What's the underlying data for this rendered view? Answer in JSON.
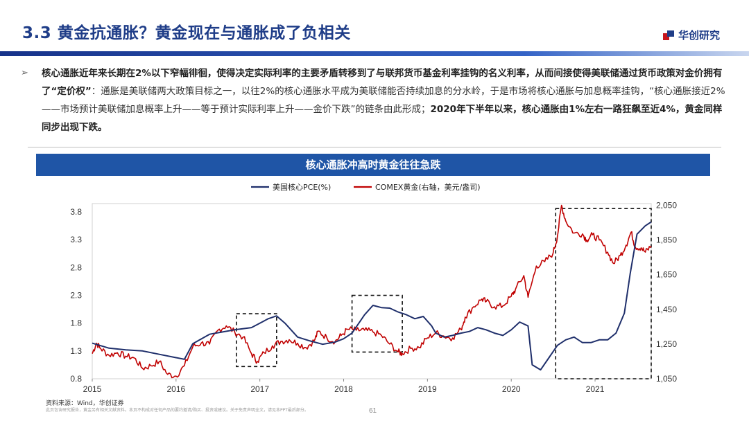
{
  "header": {
    "title": "3.3 黄金抗通胀？黄金现在与通胀成了负相关",
    "logo_text": "华创研究"
  },
  "body": {
    "bullet": "➢",
    "bold_1": "核心通胀近年来长期在2%以下窄幅徘徊，使得决定实际利率的主要矛盾转移到了与联邦货币基金利率挂钩的名义利率，从而间接使得美联储通过货币政策对金价拥有了“定价权”",
    "normal_1": "：通胀是美联储两大政策目标之一，以往2%的核心通胀水平成为美联储能否持续加息的分水岭，于是市场将核心通胀与加息概率挂钩，“核心通胀接近2%——市场预计美联储加息概率上升——等于预计实际利率上升——金价下跌”的链条由此形成；",
    "bold_2": "2020年下半年以来，核心通胀由1%左右一路狂飙至近4%，黄金同样同步出现下跌。"
  },
  "chart_banner": "核心通胀冲高时黄金往往急跌",
  "footer": {
    "source": "资料来源：Wind，华创证券",
    "disclaimer": "此页包含研究报告，黄金另有相关文献资料。本页不构成对任何产品的要约邀请/购买、投资或建议。关于免责声明全文，请见本PPT最后部分。",
    "page": "61"
  },
  "colors": {
    "pce": "#1f2f6b",
    "gold": "#c00000",
    "accent": "#1f55a6"
  },
  "chart_data": {
    "type": "line",
    "x_ticks": [
      "2015",
      "2016",
      "2017",
      "2018",
      "2019",
      "2020",
      "2021"
    ],
    "y_left": {
      "ticks": [
        "0.8",
        "1.3",
        "1.8",
        "2.3",
        "2.8",
        "3.3",
        "3.8"
      ],
      "range": [
        0.8,
        3.95
      ]
    },
    "y_right": {
      "ticks": [
        "1,050",
        "1,250",
        "1,450",
        "1,650",
        "1,850",
        "2,050"
      ],
      "range": [
        1050,
        2060
      ]
    },
    "x_range": [
      2015.0,
      2021.67
    ],
    "grid": false,
    "legend_position": "top",
    "series": [
      {
        "name": "美国核心PCE(%)",
        "axis": "left",
        "points": [
          [
            2015.0,
            1.44
          ],
          [
            2015.2,
            1.35
          ],
          [
            2015.4,
            1.32
          ],
          [
            2015.6,
            1.3
          ],
          [
            2015.8,
            1.24
          ],
          [
            2016.0,
            1.18
          ],
          [
            2016.1,
            1.15
          ],
          [
            2016.2,
            1.43
          ],
          [
            2016.4,
            1.6
          ],
          [
            2016.55,
            1.64
          ],
          [
            2016.7,
            1.68
          ],
          [
            2016.9,
            1.72
          ],
          [
            2017.0,
            1.8
          ],
          [
            2017.1,
            1.88
          ],
          [
            2017.2,
            1.93
          ],
          [
            2017.3,
            1.8
          ],
          [
            2017.45,
            1.55
          ],
          [
            2017.6,
            1.48
          ],
          [
            2017.75,
            1.42
          ],
          [
            2017.9,
            1.46
          ],
          [
            2018.0,
            1.52
          ],
          [
            2018.1,
            1.62
          ],
          [
            2018.25,
            1.95
          ],
          [
            2018.35,
            2.12
          ],
          [
            2018.45,
            2.08
          ],
          [
            2018.55,
            2.07
          ],
          [
            2018.65,
            2.0
          ],
          [
            2018.75,
            1.95
          ],
          [
            2018.85,
            1.88
          ],
          [
            2018.95,
            1.92
          ],
          [
            2019.05,
            1.75
          ],
          [
            2019.1,
            1.62
          ],
          [
            2019.2,
            1.55
          ],
          [
            2019.3,
            1.58
          ],
          [
            2019.4,
            1.62
          ],
          [
            2019.5,
            1.65
          ],
          [
            2019.6,
            1.72
          ],
          [
            2019.7,
            1.68
          ],
          [
            2019.8,
            1.62
          ],
          [
            2019.9,
            1.58
          ],
          [
            2020.0,
            1.68
          ],
          [
            2020.1,
            1.82
          ],
          [
            2020.2,
            1.75
          ],
          [
            2020.25,
            1.05
          ],
          [
            2020.35,
            0.96
          ],
          [
            2020.45,
            1.18
          ],
          [
            2020.55,
            1.4
          ],
          [
            2020.65,
            1.5
          ],
          [
            2020.75,
            1.55
          ],
          [
            2020.85,
            1.45
          ],
          [
            2020.95,
            1.45
          ],
          [
            2021.05,
            1.5
          ],
          [
            2021.15,
            1.5
          ],
          [
            2021.25,
            1.62
          ],
          [
            2021.35,
            1.98
          ],
          [
            2021.42,
            2.7
          ],
          [
            2021.5,
            3.4
          ],
          [
            2021.6,
            3.55
          ],
          [
            2021.67,
            3.62
          ]
        ]
      },
      {
        "name": "COMEX黄金(右轴，美元/盎司)",
        "axis": "right",
        "points": [
          [
            2015.0,
            1195
          ],
          [
            2015.05,
            1255
          ],
          [
            2015.1,
            1225
          ],
          [
            2015.2,
            1185
          ],
          [
            2015.3,
            1200
          ],
          [
            2015.4,
            1180
          ],
          [
            2015.5,
            1170
          ],
          [
            2015.6,
            1110
          ],
          [
            2015.7,
            1125
          ],
          [
            2015.8,
            1150
          ],
          [
            2015.9,
            1075
          ],
          [
            2016.0,
            1065
          ],
          [
            2016.1,
            1125
          ],
          [
            2016.2,
            1235
          ],
          [
            2016.3,
            1255
          ],
          [
            2016.4,
            1250
          ],
          [
            2016.5,
            1330
          ],
          [
            2016.6,
            1355
          ],
          [
            2016.7,
            1320
          ],
          [
            2016.8,
            1290
          ],
          [
            2016.9,
            1195
          ],
          [
            2016.97,
            1150
          ],
          [
            2017.05,
            1200
          ],
          [
            2017.15,
            1240
          ],
          [
            2017.25,
            1265
          ],
          [
            2017.35,
            1275
          ],
          [
            2017.45,
            1255
          ],
          [
            2017.55,
            1230
          ],
          [
            2017.65,
            1270
          ],
          [
            2017.7,
            1325
          ],
          [
            2017.8,
            1285
          ],
          [
            2017.9,
            1265
          ],
          [
            2017.97,
            1300
          ],
          [
            2018.05,
            1335
          ],
          [
            2018.15,
            1330
          ],
          [
            2018.25,
            1330
          ],
          [
            2018.35,
            1320
          ],
          [
            2018.45,
            1300
          ],
          [
            2018.55,
            1250
          ],
          [
            2018.65,
            1205
          ],
          [
            2018.7,
            1195
          ],
          [
            2018.8,
            1225
          ],
          [
            2018.9,
            1230
          ],
          [
            2019.0,
            1285
          ],
          [
            2019.1,
            1315
          ],
          [
            2019.2,
            1295
          ],
          [
            2019.3,
            1285
          ],
          [
            2019.4,
            1335
          ],
          [
            2019.45,
            1405
          ],
          [
            2019.55,
            1465
          ],
          [
            2019.65,
            1510
          ],
          [
            2019.7,
            1495
          ],
          [
            2019.8,
            1465
          ],
          [
            2019.9,
            1470
          ],
          [
            2020.0,
            1525
          ],
          [
            2020.05,
            1565
          ],
          [
            2020.15,
            1645
          ],
          [
            2020.2,
            1520
          ],
          [
            2020.3,
            1700
          ],
          [
            2020.4,
            1725
          ],
          [
            2020.5,
            1775
          ],
          [
            2020.55,
            1870
          ],
          [
            2020.6,
            2050
          ],
          [
            2020.65,
            1960
          ],
          [
            2020.75,
            1890
          ],
          [
            2020.85,
            1885
          ],
          [
            2020.9,
            1850
          ],
          [
            2020.97,
            1880
          ],
          [
            2021.05,
            1850
          ],
          [
            2021.15,
            1780
          ],
          [
            2021.22,
            1715
          ],
          [
            2021.3,
            1760
          ],
          [
            2021.37,
            1820
          ],
          [
            2021.43,
            1895
          ],
          [
            2021.48,
            1810
          ],
          [
            2021.55,
            1805
          ],
          [
            2021.6,
            1780
          ],
          [
            2021.67,
            1815
          ]
        ]
      }
    ],
    "highlight_boxes": [
      {
        "x": [
          2016.72,
          2017.2
        ],
        "y_left": [
          1.02,
          1.97
        ]
      },
      {
        "x": [
          2018.1,
          2018.7
        ],
        "y_left": [
          1.28,
          2.3
        ]
      },
      {
        "x": [
          2020.53,
          2021.67
        ],
        "y_left": [
          0.8,
          3.86
        ]
      }
    ]
  }
}
